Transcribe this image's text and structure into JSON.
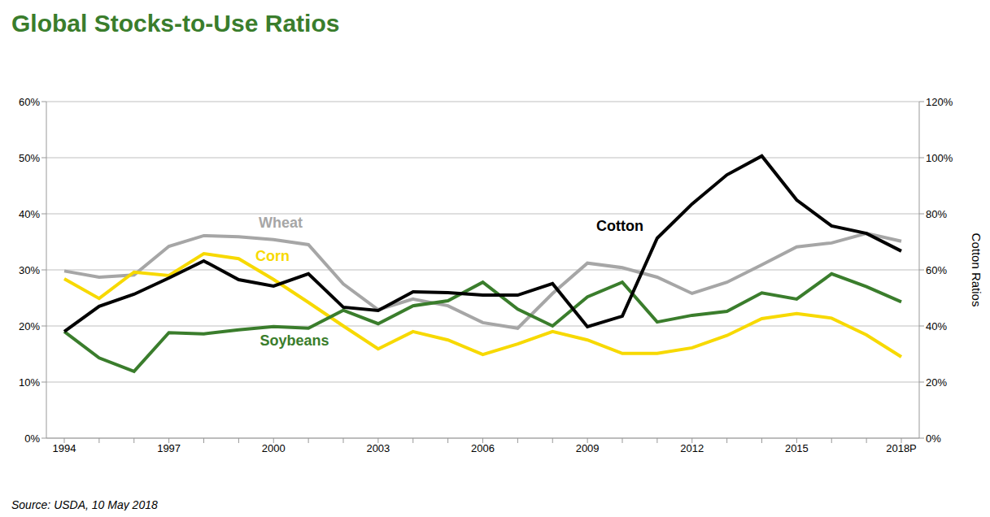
{
  "chart_data": {
    "type": "line",
    "title": "Global Stocks-to-Use Ratios",
    "source": "Source: USDA, 10 May 2018",
    "y2label": "Cotton Ratios",
    "categories": [
      "1994",
      null,
      null,
      "1997",
      null,
      null,
      "2000",
      null,
      null,
      "2003",
      null,
      null,
      "2006",
      null,
      null,
      "2009",
      null,
      null,
      "2012",
      null,
      null,
      "2015",
      null,
      null,
      "2018P"
    ],
    "series": [
      {
        "name": "Wheat",
        "color": "#a6a6a6",
        "values": [
          29.8,
          28.7,
          29.1,
          34.2,
          36.1,
          35.9,
          35.4,
          34.5,
          27.5,
          22.9,
          24.8,
          23.6,
          20.6,
          19.6,
          25.8,
          31.2,
          30.4,
          28.7,
          25.8,
          27.8,
          30.9,
          34.1,
          34.8,
          36.5,
          35.1
        ]
      },
      {
        "name": "Corn",
        "color": "#f7d900",
        "values": [
          28.4,
          24.9,
          29.6,
          29.0,
          32.9,
          32.0,
          28.3,
          24.2,
          20.0,
          15.9,
          19.0,
          17.5,
          14.9,
          16.8,
          19.0,
          17.5,
          15.1,
          15.1,
          16.1,
          18.3,
          21.3,
          22.2,
          21.4,
          18.4,
          14.5
        ]
      },
      {
        "name": "Soybeans",
        "color": "#3a7d2c",
        "values": [
          19.0,
          14.3,
          11.9,
          18.8,
          18.6,
          19.3,
          19.9,
          19.6,
          22.8,
          20.4,
          23.6,
          24.5,
          27.8,
          23.0,
          20.0,
          25.2,
          27.8,
          20.7,
          21.9,
          22.6,
          25.9,
          24.8,
          29.3,
          27.0,
          24.3
        ]
      },
      {
        "name": "Cotton",
        "color": "#000000",
        "axis": "y2",
        "values": [
          38.0,
          47.0,
          51.3,
          57.1,
          63.2,
          56.5,
          54.2,
          58.6,
          46.7,
          45.5,
          52.2,
          51.9,
          51.0,
          51.0,
          55.1,
          39.7,
          43.5,
          71.3,
          83.5,
          93.9,
          100.6,
          84.9,
          75.7,
          73.0,
          66.7
        ]
      }
    ],
    "ylim": [
      0,
      60
    ],
    "yticks": [
      {
        "value": 0,
        "label": "0%"
      },
      {
        "value": 10,
        "label": "10%"
      },
      {
        "value": 20,
        "label": "20%"
      },
      {
        "value": 30,
        "label": "30%"
      },
      {
        "value": 40,
        "label": "40%"
      },
      {
        "value": 50,
        "label": "50%"
      },
      {
        "value": 60,
        "label": "60%"
      }
    ],
    "y2lim": [
      0,
      120
    ],
    "y2ticks": [
      {
        "value": 0,
        "label": "0%"
      },
      {
        "value": 20,
        "label": "20%"
      },
      {
        "value": 40,
        "label": "40%"
      },
      {
        "value": 60,
        "label": "60%"
      },
      {
        "value": 80,
        "label": "80%"
      },
      {
        "value": 100,
        "label": "100%"
      },
      {
        "value": 120,
        "label": "120%"
      }
    ],
    "grid": true
  }
}
